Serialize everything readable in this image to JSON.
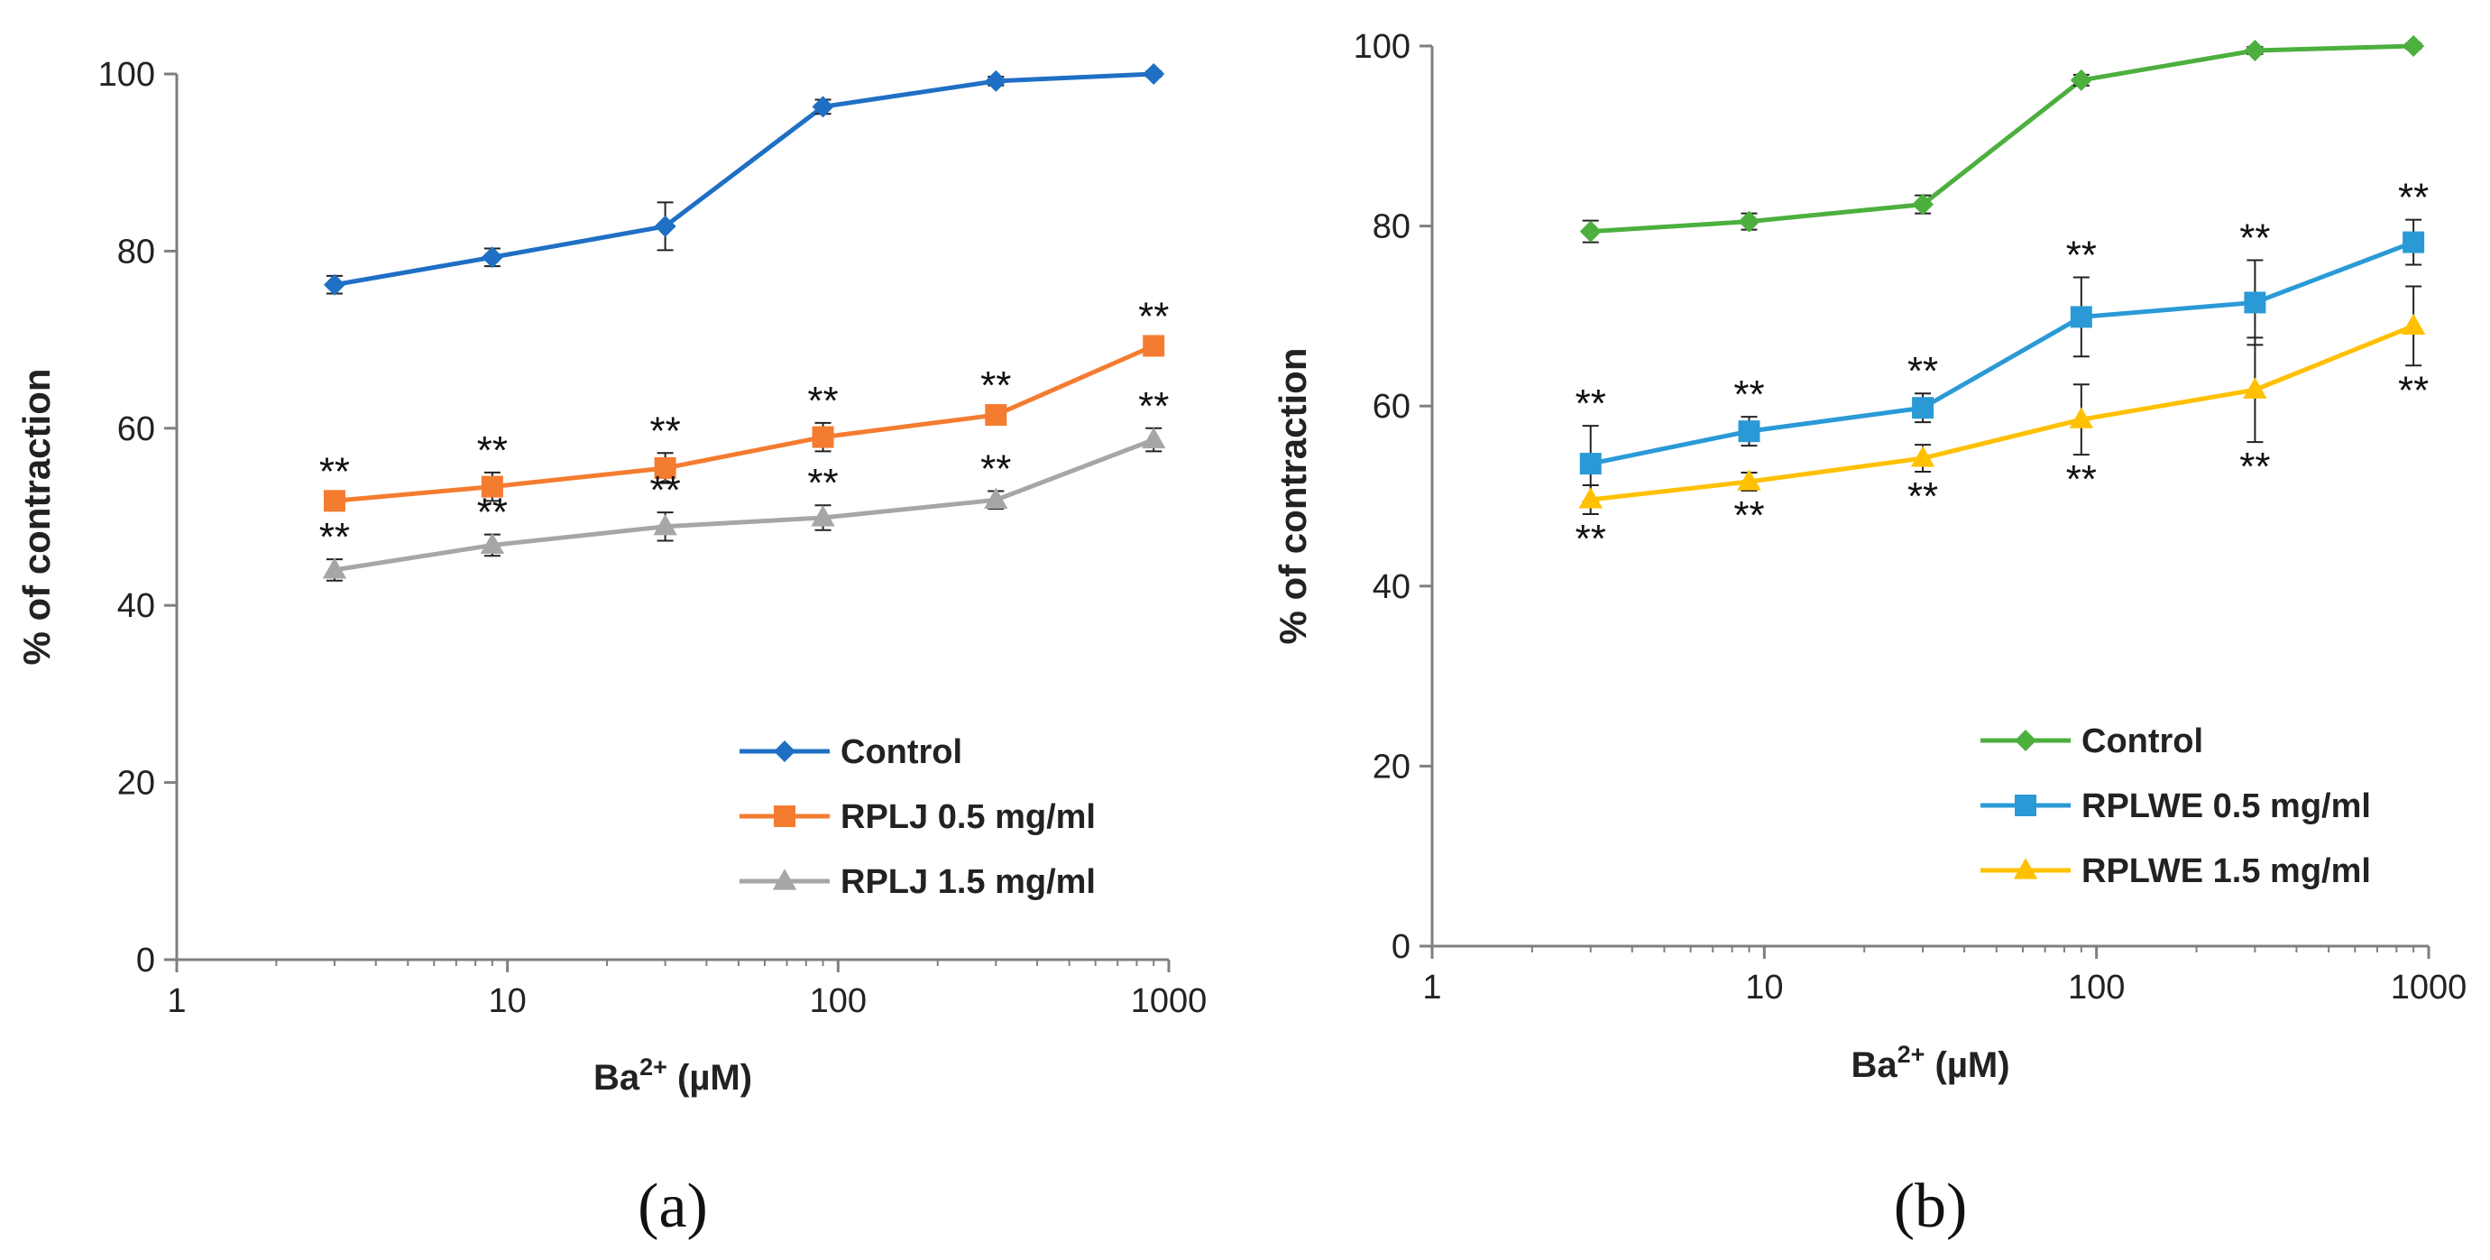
{
  "chart_data": [
    {
      "type": "line",
      "panel_label": "(a)",
      "xlabel_main": "Ba",
      "xlabel_sup": "2+",
      "xlabel_unit": " (µM)",
      "ylabel": "%  of contraction",
      "xscale": "log",
      "xlim": [
        1,
        1000
      ],
      "ylim": [
        0,
        100
      ],
      "xticks": [
        1,
        10,
        100,
        1000
      ],
      "xtick_labels": [
        "1",
        "10",
        "100",
        "1000"
      ],
      "yticks": [
        0,
        20,
        40,
        60,
        80,
        100
      ],
      "ytick_labels": [
        "0",
        "20",
        "40",
        "60",
        "80",
        "100"
      ],
      "x": [
        3,
        9,
        30,
        90,
        300,
        900
      ],
      "significance_mark": "**",
      "legend_position": "bottom-right",
      "series": [
        {
          "name": "Control",
          "color": "#1f6fc5",
          "marker": "diamond",
          "values": [
            76.2,
            79.3,
            82.8,
            96.3,
            99.2,
            100
          ],
          "errors": [
            1.0,
            1.0,
            2.7,
            0.8,
            0.5,
            0.3
          ],
          "sig": [
            null,
            null,
            null,
            null,
            null,
            null
          ]
        },
        {
          "name": "RPLJ 0.5 mg/ml",
          "color": "#f47c30",
          "marker": "square",
          "values": [
            51.8,
            53.4,
            55.5,
            59.0,
            61.5,
            69.3
          ],
          "errors": [
            0.8,
            1.6,
            1.7,
            1.6,
            0.8,
            0.8
          ],
          "sig": [
            "above",
            "above",
            "above",
            "above",
            "above",
            "above"
          ]
        },
        {
          "name": "RPLJ 1.5 mg/ml",
          "color": "#a6a6a6",
          "marker": "triangle",
          "values": [
            44.0,
            46.8,
            48.9,
            49.9,
            51.9,
            58.7
          ],
          "errors": [
            1.2,
            1.2,
            1.6,
            1.4,
            1.0,
            1.3
          ],
          "sig": [
            "above",
            "above",
            "above",
            "above",
            "above",
            "above"
          ]
        }
      ]
    },
    {
      "type": "line",
      "panel_label": "(b)",
      "xlabel_main": "Ba",
      "xlabel_sup": "2+",
      "xlabel_unit": " (µM)",
      "ylabel": "%  of contraction",
      "xscale": "log",
      "xlim": [
        1,
        1000
      ],
      "ylim": [
        0,
        100
      ],
      "xticks": [
        1,
        10,
        100,
        1000
      ],
      "xtick_labels": [
        "1",
        "10",
        "100",
        "1000"
      ],
      "yticks": [
        0,
        20,
        40,
        60,
        80,
        100
      ],
      "ytick_labels": [
        "0",
        "20",
        "40",
        "60",
        "80",
        "100"
      ],
      "x": [
        3,
        9,
        30,
        90,
        300,
        900
      ],
      "significance_mark": "**",
      "legend_position": "bottom-right",
      "series": [
        {
          "name": "Control",
          "color": "#4caf3e",
          "marker": "diamond",
          "values": [
            79.4,
            80.5,
            82.4,
            96.2,
            99.5,
            100
          ],
          "errors": [
            1.2,
            0.9,
            1.0,
            0.6,
            0.4,
            0.3
          ],
          "sig": [
            null,
            null,
            null,
            null,
            null,
            null
          ]
        },
        {
          "name": "RPLWE 0.5 mg/ml",
          "color": "#2a9ad6",
          "marker": "square",
          "values": [
            53.6,
            57.2,
            59.8,
            69.9,
            71.5,
            78.2
          ],
          "errors": [
            4.2,
            1.6,
            1.6,
            4.4,
            4.7,
            2.5
          ],
          "sig": [
            "above",
            "above",
            "above",
            "above",
            "above",
            "above"
          ]
        },
        {
          "name": "RPLWE 1.5 mg/ml",
          "color": "#ffc000",
          "marker": "triangle",
          "values": [
            49.6,
            51.6,
            54.2,
            58.5,
            61.8,
            68.9
          ],
          "errors": [
            1.6,
            1.0,
            1.5,
            3.9,
            5.8,
            4.4
          ],
          "sig": [
            "below",
            "below",
            "below",
            "below",
            "below",
            "below"
          ]
        }
      ]
    }
  ]
}
